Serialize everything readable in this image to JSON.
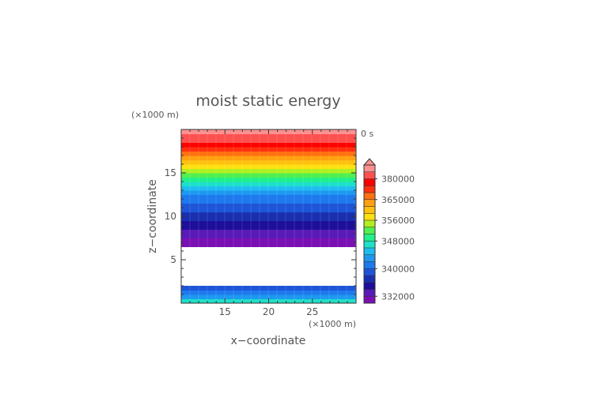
{
  "chart_data": {
    "type": "heatmap",
    "title": "moist static energy",
    "xlabel": "x−coordinate",
    "ylabel": "z−coordinate",
    "x_unit_label": "(×1000 m)",
    "y_unit_label": "(×1000 m)",
    "time_label": "0 s",
    "xlim": [
      10,
      30
    ],
    "ylim": [
      0,
      20
    ],
    "x_ticks": [
      {
        "value": 15,
        "label": "15"
      },
      {
        "value": 20,
        "label": "20"
      },
      {
        "value": 25,
        "label": "25"
      }
    ],
    "y_ticks": [
      {
        "value": 5,
        "label": "5"
      },
      {
        "value": 10,
        "label": "10"
      },
      {
        "value": 15,
        "label": "15"
      }
    ],
    "data_gap_z": [
      1.9,
      6.6
    ],
    "profile": [
      {
        "z": 0.25,
        "value": 346000
      },
      {
        "z": 0.75,
        "value": 343000
      },
      {
        "z": 1.25,
        "value": 340000
      },
      {
        "z": 1.75,
        "value": 338000
      },
      {
        "z": 6.75,
        "value": 330000
      },
      {
        "z": 7.25,
        "value": 331000
      },
      {
        "z": 7.75,
        "value": 332000
      },
      {
        "z": 8.25,
        "value": 333000
      },
      {
        "z": 8.75,
        "value": 334000
      },
      {
        "z": 9.25,
        "value": 335000
      },
      {
        "z": 9.75,
        "value": 336000
      },
      {
        "z": 10.25,
        "value": 337000
      },
      {
        "z": 10.75,
        "value": 338000
      },
      {
        "z": 11.25,
        "value": 339000
      },
      {
        "z": 11.75,
        "value": 340000
      },
      {
        "z": 12.25,
        "value": 341000
      },
      {
        "z": 12.75,
        "value": 342000
      },
      {
        "z": 13.25,
        "value": 344000
      },
      {
        "z": 13.75,
        "value": 346000
      },
      {
        "z": 14.25,
        "value": 348000
      },
      {
        "z": 14.75,
        "value": 351000
      },
      {
        "z": 15.25,
        "value": 354000
      },
      {
        "z": 15.75,
        "value": 356000
      },
      {
        "z": 16.25,
        "value": 359000
      },
      {
        "z": 16.75,
        "value": 362000
      },
      {
        "z": 17.25,
        "value": 365000
      },
      {
        "z": 17.75,
        "value": 370000
      },
      {
        "z": 18.25,
        "value": 375000
      },
      {
        "z": 18.75,
        "value": 381000
      },
      {
        "z": 19.25,
        "value": 384000
      },
      {
        "z": 19.75,
        "value": 387000
      }
    ],
    "colorbar": {
      "levels": [
        330000,
        332000,
        334000,
        336000,
        338000,
        340000,
        342000,
        344000,
        346000,
        348000,
        350000,
        353000,
        356000,
        359000,
        362000,
        365000,
        370000,
        375000,
        380000,
        385000
      ],
      "colors": [
        "#7a0fb4",
        "#5a1ab8",
        "#1e0f9a",
        "#1a2fb0",
        "#1e55d8",
        "#1e78ee",
        "#1e98f0",
        "#1ebdf0",
        "#1ee0c8",
        "#20f08a",
        "#50f050",
        "#b0f020",
        "#ffe010",
        "#ffc010",
        "#ffa010",
        "#ff7010",
        "#ff3010",
        "#ff0000",
        "#ff5050",
        "#ff9090"
      ],
      "ticks": [
        {
          "value": 332000,
          "label": "332000"
        },
        {
          "value": 340000,
          "label": "340000"
        },
        {
          "value": 348000,
          "label": "348000"
        },
        {
          "value": 356000,
          "label": "356000"
        },
        {
          "value": 365000,
          "label": "365000"
        },
        {
          "value": 380000,
          "label": "380000"
        }
      ]
    }
  }
}
